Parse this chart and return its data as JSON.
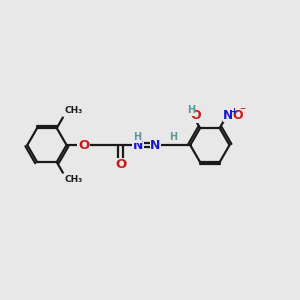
{
  "bg_color": "#e8e8e8",
  "bond_color": "#1a1a1a",
  "bond_width": 1.6,
  "atom_colors": {
    "C": "#1a1a1a",
    "H": "#5a9a9a",
    "N": "#1a1acc",
    "O": "#cc1a1a"
  },
  "font_size": 8.5,
  "fig_width": 3.0,
  "fig_height": 3.0,
  "dpi": 100,
  "xlim": [
    0,
    12
  ],
  "ylim": [
    0,
    10
  ]
}
